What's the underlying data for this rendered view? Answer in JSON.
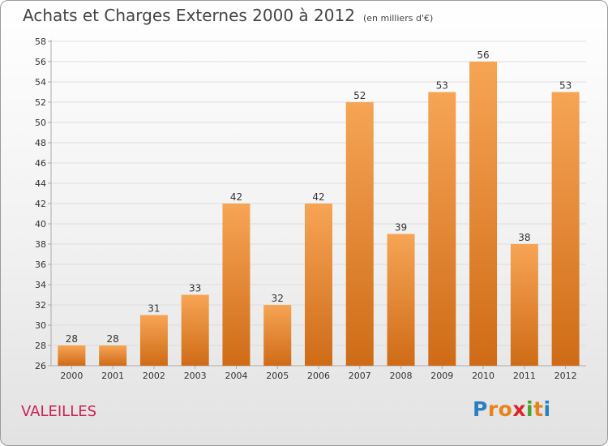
{
  "header": {
    "title": "Achats et Charges Externes 2000 à 2012",
    "subtitle": "(en milliers d'€)"
  },
  "commune": "VALEILLES",
  "brand": {
    "letters": [
      "P",
      "r",
      "o",
      "x",
      "i",
      "t",
      "i"
    ],
    "colors": [
      "#2a7fc1",
      "#e8831c",
      "#e8831c",
      "#d9262b",
      "#4aa12e",
      "#e8831c",
      "#2a7fc1"
    ]
  },
  "colors": {
    "bar_top": "#f6a555",
    "bar_bottom": "#cf6b17",
    "axis": "#aaaaaa",
    "grid": "#dddddd",
    "label": "#333333"
  },
  "chart_data": {
    "type": "bar",
    "categories": [
      "2000",
      "2001",
      "2002",
      "2003",
      "2004",
      "2005",
      "2006",
      "2007",
      "2008",
      "2009",
      "2010",
      "2011",
      "2012"
    ],
    "values": [
      28,
      28,
      31,
      33,
      42,
      32,
      42,
      52,
      39,
      53,
      56,
      38,
      53
    ],
    "ylim": [
      26,
      58
    ],
    "yticks": [
      26,
      28,
      30,
      32,
      34,
      36,
      38,
      40,
      42,
      44,
      46,
      48,
      50,
      52,
      54,
      56,
      58
    ],
    "grid": true,
    "data_labels": true
  }
}
